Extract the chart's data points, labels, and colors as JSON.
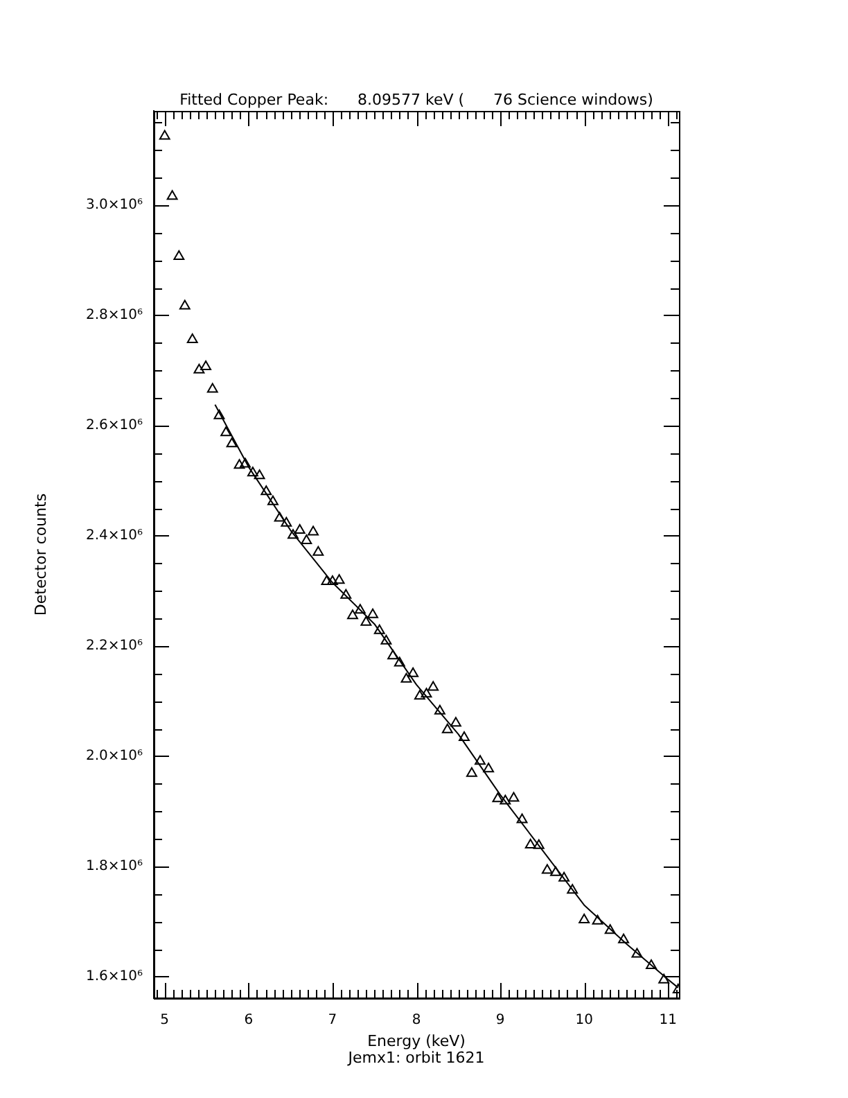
{
  "chart_data": {
    "type": "scatter",
    "title": "Fitted Copper Peak:      8.09577 keV (      76 Science windows)",
    "xlabel": "Energy (keV)",
    "ylabel": "Detector counts",
    "annotations": [
      "Jemx1: orbit 1621"
    ],
    "xlim": [
      4.87,
      11.13
    ],
    "ylim": [
      1561000,
      3171000
    ],
    "xticks": [
      {
        "value": 4.9,
        "label": null
      },
      5,
      {
        "value": 5.1,
        "label": null
      },
      {
        "value": 5.2,
        "label": null
      },
      {
        "value": 5.3,
        "label": null
      },
      {
        "value": 5.4,
        "label": null
      },
      {
        "value": 5.5,
        "label": null
      },
      {
        "value": 5.6,
        "label": null
      },
      {
        "value": 5.7,
        "label": null
      },
      {
        "value": 5.8,
        "label": null
      },
      {
        "value": 5.9,
        "label": null
      },
      6,
      {
        "value": 6.1,
        "label": null
      },
      {
        "value": 6.2,
        "label": null
      },
      {
        "value": 6.3,
        "label": null
      },
      {
        "value": 6.4,
        "label": null
      },
      {
        "value": 6.5,
        "label": null
      },
      {
        "value": 6.6,
        "label": null
      },
      {
        "value": 6.7,
        "label": null
      },
      {
        "value": 6.8,
        "label": null
      },
      {
        "value": 6.9,
        "label": null
      },
      7,
      {
        "value": 7.1,
        "label": null
      },
      {
        "value": 7.2,
        "label": null
      },
      {
        "value": 7.3,
        "label": null
      },
      {
        "value": 7.4,
        "label": null
      },
      {
        "value": 7.5,
        "label": null
      },
      {
        "value": 7.6,
        "label": null
      },
      {
        "value": 7.7,
        "label": null
      },
      {
        "value": 7.8,
        "label": null
      },
      {
        "value": 7.9,
        "label": null
      },
      8,
      {
        "value": 8.1,
        "label": null
      },
      {
        "value": 8.2,
        "label": null
      },
      {
        "value": 8.3,
        "label": null
      },
      {
        "value": 8.4,
        "label": null
      },
      {
        "value": 8.5,
        "label": null
      },
      {
        "value": 8.6,
        "label": null
      },
      {
        "value": 8.7,
        "label": null
      },
      {
        "value": 8.8,
        "label": null
      },
      {
        "value": 8.9,
        "label": null
      },
      9,
      {
        "value": 9.1,
        "label": null
      },
      {
        "value": 9.2,
        "label": null
      },
      {
        "value": 9.3,
        "label": null
      },
      {
        "value": 9.4,
        "label": null
      },
      {
        "value": 9.5,
        "label": null
      },
      {
        "value": 9.6,
        "label": null
      },
      {
        "value": 9.7,
        "label": null
      },
      {
        "value": 9.8,
        "label": null
      },
      {
        "value": 9.9,
        "label": null
      },
      10,
      {
        "value": 10.1,
        "label": null
      },
      {
        "value": 10.2,
        "label": null
      },
      {
        "value": 10.3,
        "label": null
      },
      {
        "value": 10.4,
        "label": null
      },
      {
        "value": 10.5,
        "label": null
      },
      {
        "value": 10.6,
        "label": null
      },
      {
        "value": 10.7,
        "label": null
      },
      {
        "value": 10.8,
        "label": null
      },
      {
        "value": 10.9,
        "label": null
      },
      11,
      {
        "value": 11.1,
        "label": null
      }
    ],
    "yticks": [
      {
        "value": 1600000,
        "label": "1.6×10⁶"
      },
      {
        "value": 1650000,
        "label": null
      },
      {
        "value": 1700000,
        "label": null
      },
      {
        "value": 1750000,
        "label": null
      },
      {
        "value": 1800000,
        "label": "1.8×10⁶"
      },
      {
        "value": 1850000,
        "label": null
      },
      {
        "value": 1900000,
        "label": null
      },
      {
        "value": 1950000,
        "label": null
      },
      {
        "value": 2000000,
        "label": "2.0×10⁶"
      },
      {
        "value": 2050000,
        "label": null
      },
      {
        "value": 2100000,
        "label": null
      },
      {
        "value": 2150000,
        "label": null
      },
      {
        "value": 2200000,
        "label": "2.2×10⁶"
      },
      {
        "value": 2250000,
        "label": null
      },
      {
        "value": 2300000,
        "label": null
      },
      {
        "value": 2350000,
        "label": null
      },
      {
        "value": 2400000,
        "label": "2.4×10⁶"
      },
      {
        "value": 2450000,
        "label": null
      },
      {
        "value": 2500000,
        "label": null
      },
      {
        "value": 2550000,
        "label": null
      },
      {
        "value": 2600000,
        "label": "2.6×10⁶"
      },
      {
        "value": 2650000,
        "label": null
      },
      {
        "value": 2700000,
        "label": null
      },
      {
        "value": 2750000,
        "label": null
      },
      {
        "value": 2800000,
        "label": "2.8×10⁶"
      },
      {
        "value": 2850000,
        "label": null
      },
      {
        "value": 2900000,
        "label": null
      },
      {
        "value": 2950000,
        "label": null
      },
      {
        "value": 3000000,
        "label": "3.0×10⁶"
      },
      {
        "value": 3050000,
        "label": null
      },
      {
        "value": 3100000,
        "label": null
      },
      {
        "value": 3150000,
        "label": null
      }
    ],
    "grid": false,
    "legend": false,
    "series": [
      {
        "type": "scatter",
        "marker": "triangle",
        "color": "#000000",
        "x": [
          5.0,
          5.09,
          5.17,
          5.24,
          5.33,
          5.41,
          5.49,
          5.57,
          5.65,
          5.73,
          5.8,
          5.89,
          5.96,
          6.05,
          6.13,
          6.21,
          6.29,
          6.37,
          6.45,
          6.53,
          6.61,
          6.69,
          6.77,
          6.83,
          6.93,
          7.0,
          7.08,
          7.16,
          7.24,
          7.33,
          7.4,
          7.48,
          7.56,
          7.64,
          7.72,
          7.8,
          7.88,
          7.96,
          8.04,
          8.12,
          8.2,
          8.28,
          8.37,
          8.47,
          8.57,
          8.66,
          8.76,
          8.86,
          8.97,
          9.06,
          9.16,
          9.26,
          9.36,
          9.46,
          9.56,
          9.66,
          9.76,
          9.86,
          10.0,
          10.16,
          10.31,
          10.47,
          10.63,
          10.8,
          10.95,
          11.12
        ],
        "values": [
          3125000,
          3016000,
          2907000,
          2817000,
          2756000,
          2701000,
          2707000,
          2666000,
          2618000,
          2587000,
          2567000,
          2528000,
          2530000,
          2514000,
          2509000,
          2480000,
          2462000,
          2432000,
          2423000,
          2401000,
          2410000,
          2391000,
          2407000,
          2370000,
          2317000,
          2317000,
          2319000,
          2292000,
          2255000,
          2265000,
          2243000,
          2257000,
          2228000,
          2209000,
          2182000,
          2169000,
          2140000,
          2150000,
          2109000,
          2113000,
          2125000,
          2082000,
          2048000,
          2060000,
          2034000,
          1969000,
          1991000,
          1977000,
          1923000,
          1919000,
          1924000,
          1885000,
          1839000,
          1838000,
          1793000,
          1789000,
          1779000,
          1757000,
          1703000,
          1701000,
          1684000,
          1667000,
          1641000,
          1620000,
          1594000,
          1576000
        ]
      },
      {
        "type": "line",
        "marker": "none",
        "line_style": "solid",
        "color": "#000000",
        "x": [
          5.6,
          6.0,
          6.5,
          7.0,
          7.5,
          8.0,
          8.5,
          9.0,
          9.5,
          10.0,
          10.5,
          11.0,
          11.12
        ],
        "values": [
          2638000,
          2525000,
          2410000,
          2315000,
          2240000,
          2130000,
          2040000,
          1930000,
          1830000,
          1730000,
          1660000,
          1595000,
          1580000
        ]
      }
    ]
  }
}
